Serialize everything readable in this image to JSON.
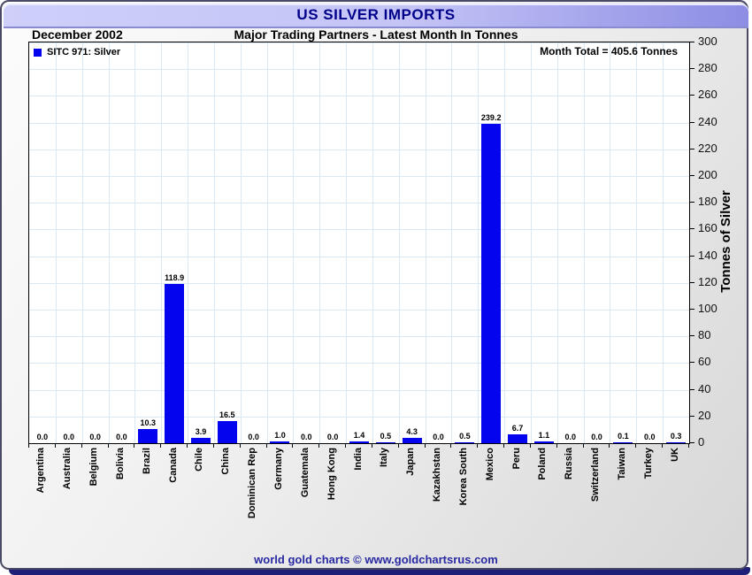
{
  "header": {
    "title": "US SILVER IMPORTS"
  },
  "subheader": {
    "date": "December 2002",
    "subtitle": "Major Trading Partners - Latest Month In Tonnes"
  },
  "chart_data": {
    "type": "bar",
    "title": "US SILVER IMPORTS",
    "period": "December 2002",
    "subtitle": "Major Trading Partners - Latest Month In Tonnes",
    "legend": "SITC 971: Silver",
    "annotation": "Month Total = 405.6 Tonnes",
    "ylabel": "Tonnes of Silver",
    "ylim": [
      0,
      300
    ],
    "ytick_step": 20,
    "grid": true,
    "bar_color": "#0404ee",
    "grid_color": "#d9e8f5",
    "categories": [
      "Argentina",
      "Australia",
      "Belgium",
      "Bolivia",
      "Brazil",
      "Canada",
      "Chile",
      "China",
      "Dominican Rep",
      "Germany",
      "Guatemala",
      "Hong Kong",
      "India",
      "Italy",
      "Japan",
      "Kazakhstan",
      "Korea South",
      "Mexico",
      "Peru",
      "Poland",
      "Russia",
      "Switzerland",
      "Taiwan",
      "Turkey",
      "UK"
    ],
    "values": [
      0.0,
      0.0,
      0.0,
      0.0,
      10.3,
      118.9,
      3.9,
      16.5,
      0.0,
      1.0,
      0.0,
      0.0,
      1.4,
      0.5,
      4.3,
      0.0,
      0.5,
      239.2,
      6.7,
      1.1,
      0.0,
      0.0,
      0.1,
      0.0,
      0.3
    ]
  },
  "footer": {
    "credit": "world gold charts © www.goldchartsrus.com"
  }
}
